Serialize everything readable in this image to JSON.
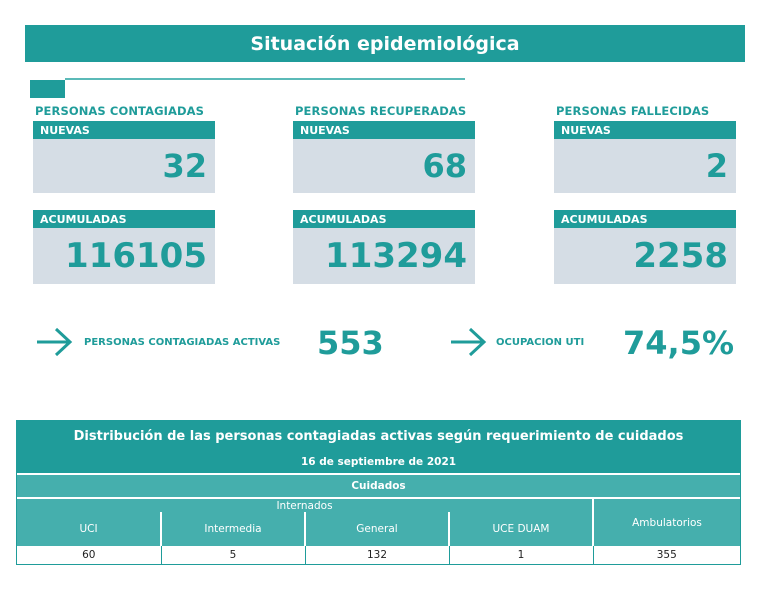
{
  "title": "Situación epidemiológica",
  "groups": [
    {
      "label": "PERSONAS CONTAGIADAS",
      "new_label": "NUEVAS",
      "new_value": "32",
      "acc_label": "ACUMULADAS",
      "acc_value": "116105"
    },
    {
      "label": "PERSONAS RECUPERADAS",
      "new_label": "NUEVAS",
      "new_value": "68",
      "acc_label": "ACUMULADAS",
      "acc_value": "113294"
    },
    {
      "label": "PERSONAS FALLECIDAS",
      "new_label": "NUEVAS",
      "new_value": "2",
      "acc_label": "ACUMULADAS",
      "acc_value": "2258"
    }
  ],
  "stats": [
    {
      "label": "PERSONAS CONTAGIADAS ACTIVAS",
      "value": "553",
      "icon": "arrow-right-icon"
    },
    {
      "label": "OCUPACION UTI",
      "value": "74,5%",
      "icon": "arrow-right-icon"
    }
  ],
  "table": {
    "title": "Distribución de las personas contagiadas activas según requerimiento de cuidados",
    "date": "16 de septiembre de 2021",
    "cuidados": "Cuidados",
    "internados": "Internados",
    "ambulatorios": "Ambulatorios",
    "columns": [
      "UCI",
      "Intermedia",
      "General",
      "UCE DUAM"
    ],
    "values": [
      "60",
      "5",
      "132",
      "1",
      "355"
    ]
  },
  "colors": {
    "accent": "#1f9c9a",
    "accent_light": "#45afad",
    "card_bg": "#d5dde5"
  }
}
